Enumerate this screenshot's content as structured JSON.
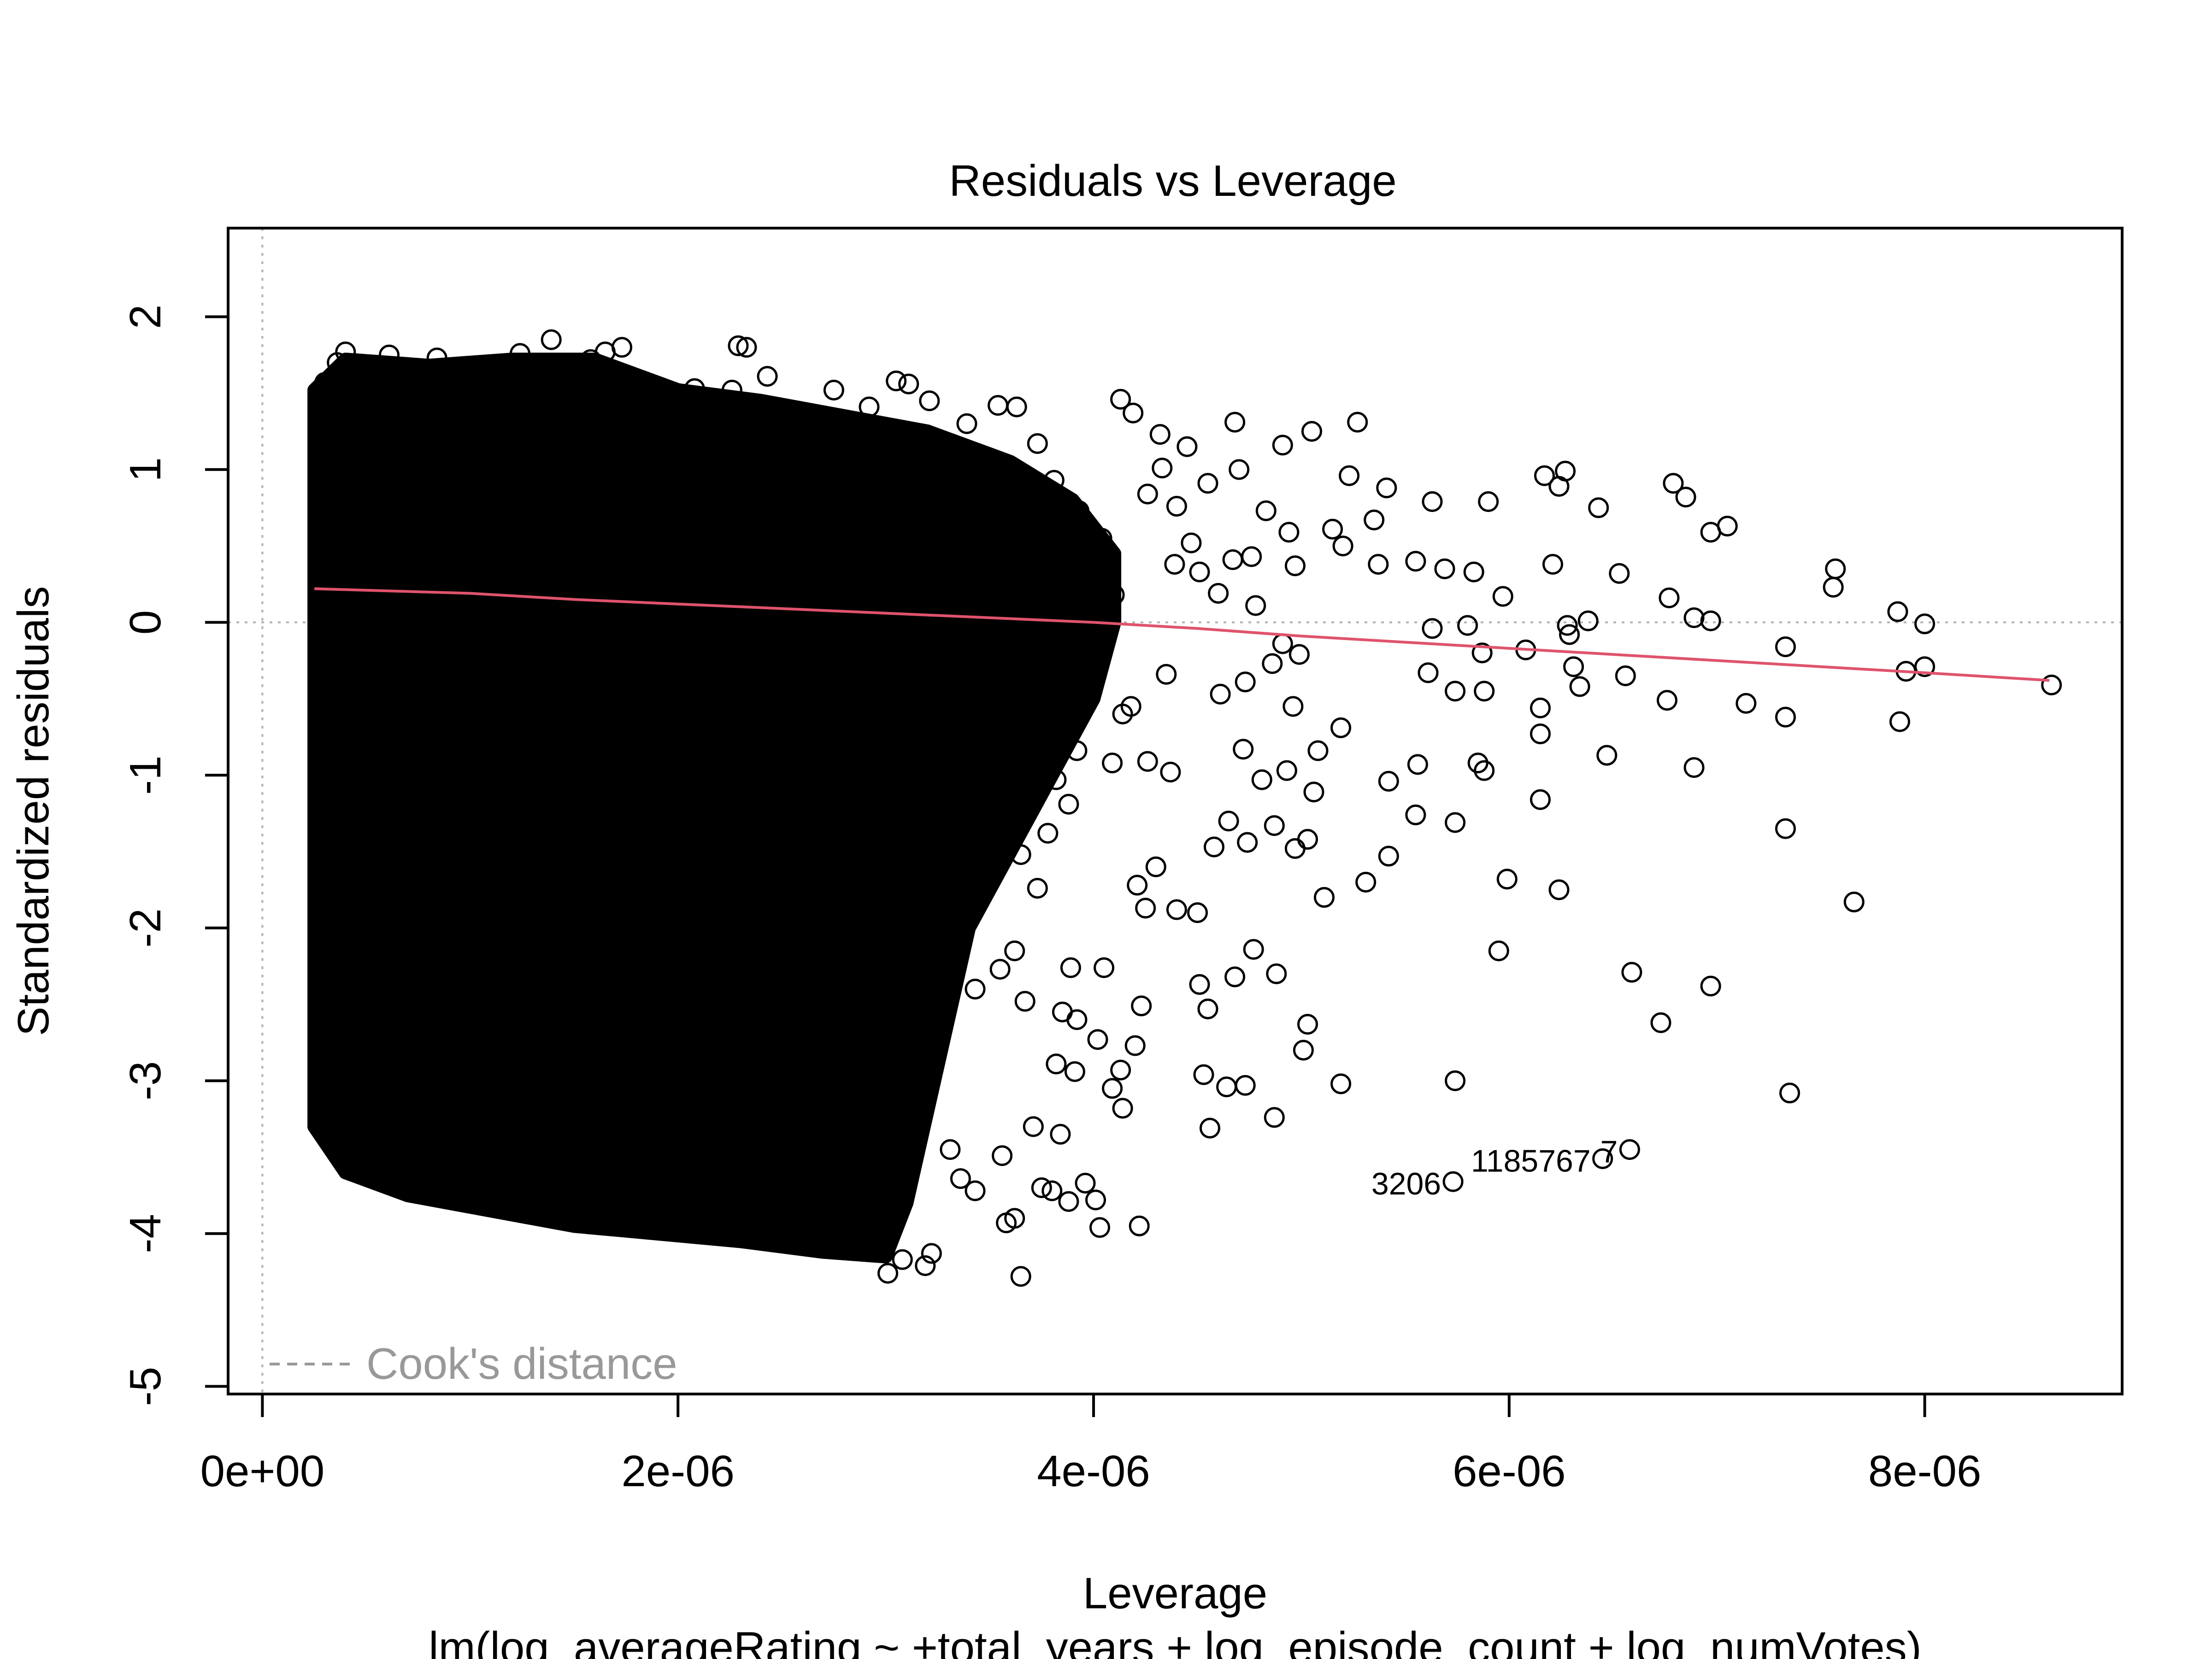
{
  "chart_data": {
    "type": "scatter",
    "title": "Residuals vs Leverage",
    "xlabel": "Leverage",
    "subtitle": "lm(log_averageRating ~ +total_years + log_episode_count + log_numVotes)",
    "ylabel": "Standardized residuals",
    "xlim": [
      -1.65e-07,
      8.95e-06
    ],
    "ylim": [
      -5.05,
      2.58
    ],
    "x_ticks": [
      0,
      2e-06,
      4e-06,
      6e-06,
      8e-06
    ],
    "x_tick_labels": [
      "0e+00",
      "2e-06",
      "4e-06",
      "6e-06",
      "8e-06"
    ],
    "y_ticks": [
      -5,
      -4,
      -3,
      -2,
      -1,
      0,
      1,
      2
    ],
    "y_tick_labels": [
      "-5",
      "-4",
      "-3",
      "-2",
      "-1",
      "0",
      "1",
      "2"
    ],
    "reference_lines": {
      "vertical_at_x": 0,
      "horizontal_at_y": 0,
      "style": "dotted",
      "color": "#b0b0b0"
    },
    "dense_region": {
      "description": "overplotted points",
      "x_range": [
        2.5e-07,
        3.2e-06
      ],
      "y_range": [
        -4.25,
        1.85
      ]
    },
    "points": [
      [
        2.29e-06,
        1.81
      ],
      [
        2.33e-06,
        1.8
      ],
      [
        1.39e-06,
        1.85
      ],
      [
        1.73e-06,
        1.8
      ],
      [
        4.13e-06,
        1.46
      ],
      [
        4.68e-06,
        1.31
      ],
      [
        5.05e-06,
        1.25
      ],
      [
        5.27e-06,
        1.31
      ],
      [
        4.91e-06,
        1.16
      ],
      [
        4.45e-06,
        1.15
      ],
      [
        4.19e-06,
        1.37
      ],
      [
        4.32e-06,
        1.23
      ],
      [
        5.23e-06,
        0.96
      ],
      [
        5.41e-06,
        0.88
      ],
      [
        5.63e-06,
        0.79
      ],
      [
        5.9e-06,
        0.79
      ],
      [
        6.27e-06,
        0.99
      ],
      [
        6.17e-06,
        0.96
      ],
      [
        6.24e-06,
        0.89
      ],
      [
        6.43e-06,
        0.75
      ],
      [
        6.79e-06,
        0.91
      ],
      [
        6.85e-06,
        0.82
      ],
      [
        7.05e-06,
        0.63
      ],
      [
        6.97e-06,
        0.59
      ],
      [
        5.15e-06,
        0.61
      ],
      [
        5.35e-06,
        0.67
      ],
      [
        5.2e-06,
        0.5
      ],
      [
        5.37e-06,
        0.38
      ],
      [
        5.55e-06,
        0.4
      ],
      [
        5.69e-06,
        0.35
      ],
      [
        5.83e-06,
        0.33
      ],
      [
        5.97e-06,
        0.17
      ],
      [
        6.21e-06,
        0.38
      ],
      [
        6.53e-06,
        0.32
      ],
      [
        6.77e-06,
        0.16
      ],
      [
        6.89e-06,
        0.03
      ],
      [
        6.97e-06,
        0.01
      ],
      [
        7.57e-06,
        0.35
      ],
      [
        7.56e-06,
        0.23
      ],
      [
        7.87e-06,
        0.07
      ],
      [
        8e-06,
        -0.01
      ],
      [
        5.63e-06,
        -0.04
      ],
      [
        5.8e-06,
        -0.02
      ],
      [
        5.87e-06,
        -0.2
      ],
      [
        6.28e-06,
        -0.02
      ],
      [
        6.29e-06,
        -0.08
      ],
      [
        6.38e-06,
        0.01
      ],
      [
        6.31e-06,
        -0.29
      ],
      [
        6.34e-06,
        -0.42
      ],
      [
        6.56e-06,
        -0.35
      ],
      [
        6.08e-06,
        -0.18
      ],
      [
        5.88e-06,
        -0.45
      ],
      [
        6.15e-06,
        -0.56
      ],
      [
        6.15e-06,
        -0.73
      ],
      [
        6.47e-06,
        -0.87
      ],
      [
        5.61e-06,
        -0.33
      ],
      [
        5.74e-06,
        -0.45
      ],
      [
        6.76e-06,
        -0.51
      ],
      [
        7.14e-06,
        -0.53
      ],
      [
        7.33e-06,
        -0.62
      ],
      [
        7.33e-06,
        -0.16
      ],
      [
        7.91e-06,
        -0.32
      ],
      [
        7.88e-06,
        -0.65
      ],
      [
        8e-06,
        -0.29
      ],
      [
        8.61e-06,
        -0.41
      ],
      [
        5.42e-06,
        -1.04
      ],
      [
        5.56e-06,
        -0.93
      ],
      [
        5.85e-06,
        -0.92
      ],
      [
        5.88e-06,
        -0.97
      ],
      [
        5.74e-06,
        -1.31
      ],
      [
        5.55e-06,
        -1.26
      ],
      [
        5.42e-06,
        -1.53
      ],
      [
        5.31e-06,
        -1.7
      ],
      [
        6.15e-06,
        -1.16
      ],
      [
        6.89e-06,
        -0.95
      ],
      [
        7.33e-06,
        -1.35
      ],
      [
        6.59e-06,
        -2.29
      ],
      [
        6.73e-06,
        -2.62
      ],
      [
        6.97e-06,
        -2.38
      ],
      [
        7.66e-06,
        -1.83
      ],
      [
        5.99e-06,
        -1.68
      ],
      [
        6.24e-06,
        -1.75
      ],
      [
        5.95e-06,
        -2.15
      ],
      [
        7.35e-06,
        -3.08
      ],
      [
        5.74e-06,
        -3.0
      ],
      [
        5.19e-06,
        -3.02
      ],
      [
        5.03e-06,
        -2.63
      ],
      [
        5.01e-06,
        -2.8
      ],
      [
        4.88e-06,
        -2.3
      ],
      [
        4.87e-06,
        -3.24
      ],
      [
        4.73e-06,
        -3.03
      ],
      [
        4.51e-06,
        -2.37
      ],
      [
        4.53e-06,
        -2.96
      ],
      [
        4.56e-06,
        -3.31
      ],
      [
        4.64e-06,
        -3.04
      ],
      [
        4.55e-06,
        -2.53
      ],
      [
        4.77e-06,
        -2.14
      ],
      [
        4.68e-06,
        -2.32
      ],
      [
        4.5e-06,
        -1.9
      ],
      [
        4.3e-06,
        -1.6
      ],
      [
        5.03e-06,
        -1.42
      ],
      [
        4.97e-06,
        -1.48
      ],
      [
        5.11e-06,
        -1.8
      ],
      [
        4.23e-06,
        -2.51
      ],
      [
        4.03e-06,
        -3.96
      ],
      [
        4.01e-06,
        -3.78
      ],
      [
        3.96e-06,
        -3.67
      ],
      [
        3.65e-06,
        -4.28
      ],
      [
        3.58e-06,
        -3.93
      ],
      [
        3.62e-06,
        -3.9
      ],
      [
        3.56e-06,
        -3.49
      ],
      [
        3.84e-06,
        -3.35
      ],
      [
        4.22e-06,
        -3.95
      ],
      [
        4.05e-06,
        -2.26
      ],
      [
        4.74e-06,
        -1.44
      ],
      [
        4.65e-06,
        -1.3
      ],
      [
        4.87e-06,
        -1.33
      ],
      [
        4.72e-06,
        -0.83
      ],
      [
        4.81e-06,
        -1.03
      ],
      [
        4.93e-06,
        -0.97
      ],
      [
        4.96e-06,
        -0.55
      ],
      [
        5.08e-06,
        -0.84
      ],
      [
        5.06e-06,
        -1.11
      ],
      [
        5.19e-06,
        -0.69
      ],
      [
        4.67e-06,
        0.41
      ],
      [
        4.76e-06,
        0.43
      ],
      [
        4.94e-06,
        0.59
      ],
      [
        4.97e-06,
        0.37
      ],
      [
        4.83e-06,
        0.73
      ],
      [
        4.7e-06,
        1.0
      ],
      [
        4.55e-06,
        0.91
      ],
      [
        4.33e-06,
        1.01
      ],
      [
        4.26e-06,
        0.84
      ],
      [
        4.4e-06,
        0.76
      ],
      [
        4.47e-06,
        0.52
      ],
      [
        4.39e-06,
        0.38
      ],
      [
        4.51e-06,
        0.33
      ],
      [
        4.6e-06,
        0.19
      ],
      [
        4.78e-06,
        0.11
      ],
      [
        4.91e-06,
        -0.14
      ],
      [
        4.99e-06,
        -0.21
      ],
      [
        4.86e-06,
        -0.27
      ],
      [
        4.61e-06,
        -0.47
      ],
      [
        4.73e-06,
        -0.39
      ],
      [
        4.35e-06,
        -0.34
      ],
      [
        4.18e-06,
        -0.55
      ],
      [
        4.26e-06,
        -0.91
      ],
      [
        4.37e-06,
        -0.98
      ],
      [
        4.21e-06,
        -1.72
      ],
      [
        4.25e-06,
        -1.87
      ],
      [
        4.4e-06,
        -1.88
      ],
      [
        4.58e-06,
        -1.47
      ],
      [
        3.92e-06,
        -2.6
      ],
      [
        3.91e-06,
        -2.94
      ],
      [
        4.02e-06,
        -2.73
      ],
      [
        4.09e-06,
        -3.05
      ],
      [
        4.14e-06,
        -3.18
      ],
      [
        3.71e-06,
        -3.3
      ],
      [
        3.82e-06,
        -2.89
      ],
      [
        3.67e-06,
        -2.48
      ],
      [
        3.89e-06,
        -2.26
      ],
      [
        3.85e-06,
        -2.55
      ],
      [
        4.2e-06,
        -2.77
      ],
      [
        4.13e-06,
        -2.93
      ],
      [
        3.75e-06,
        -3.7
      ],
      [
        3.8e-06,
        -3.72
      ],
      [
        3.88e-06,
        -3.79
      ],
      [
        3.43e-06,
        -3.72
      ],
      [
        3.36e-06,
        -3.64
      ],
      [
        3.31e-06,
        -3.45
      ],
      [
        3.22e-06,
        -4.13
      ],
      [
        3.19e-06,
        -4.21
      ],
      [
        3.01e-06,
        -4.26
      ],
      [
        3.08e-06,
        -4.17
      ],
      [
        3.31e-06,
        -2.31
      ],
      [
        3.17e-06,
        -2.06
      ],
      [
        3.24e-06,
        -2.43
      ],
      [
        3.43e-06,
        -2.4
      ],
      [
        3.55e-06,
        -2.27
      ],
      [
        3.62e-06,
        -2.15
      ],
      [
        3.73e-06,
        -1.74
      ],
      [
        3.49e-06,
        -1.63
      ],
      [
        3.65e-06,
        -1.52
      ],
      [
        3.78e-06,
        -1.38
      ],
      [
        3.88e-06,
        -1.19
      ],
      [
        3.82e-06,
        -1.03
      ],
      [
        3.92e-06,
        -0.84
      ],
      [
        4.09e-06,
        -0.92
      ],
      [
        4.14e-06,
        -0.6
      ],
      [
        4.01e-06,
        -0.35
      ],
      [
        3.97e-06,
        -0.1
      ],
      [
        4.1e-06,
        0.18
      ],
      [
        4.04e-06,
        0.55
      ],
      [
        3.93e-06,
        0.73
      ],
      [
        3.81e-06,
        0.93
      ],
      [
        3.73e-06,
        1.17
      ],
      [
        3.63e-06,
        1.41
      ],
      [
        3.54e-06,
        1.42
      ],
      [
        3.39e-06,
        1.3
      ],
      [
        3.21e-06,
        1.45
      ],
      [
        3.11e-06,
        1.56
      ],
      [
        3.05e-06,
        1.58
      ],
      [
        2.75e-06,
        1.52
      ],
      [
        2.92e-06,
        1.41
      ],
      [
        2.58e-06,
        1.33
      ],
      [
        2.43e-06,
        1.61
      ],
      [
        2.26e-06,
        1.52
      ],
      [
        2.08e-06,
        1.53
      ],
      [
        1.96e-06,
        1.5
      ],
      [
        1.86e-06,
        1.48
      ],
      [
        1.65e-06,
        1.77
      ],
      [
        1.58e-06,
        1.72
      ],
      [
        1.24e-06,
        1.76
      ],
      [
        1.1e-06,
        1.68
      ],
      [
        8.4e-07,
        1.73
      ],
      [
        7.8e-07,
        1.64
      ],
      [
        6.1e-07,
        1.75
      ],
      [
        4e-07,
        1.77
      ],
      [
        3.6e-07,
        1.7
      ],
      [
        3e-07,
        1.57
      ]
    ],
    "labeled_points": [
      {
        "label": "3206",
        "x": 5.73e-06,
        "y": -3.66
      },
      {
        "label": "1185767",
        "x": 6.45e-06,
        "y": -3.51
      },
      {
        "label": "7",
        "x": 6.58e-06,
        "y": -3.45
      }
    ],
    "smoother": {
      "color": "#df536b",
      "points": [
        [
          2.5e-07,
          0.22
        ],
        [
          1e-06,
          0.19
        ],
        [
          1.5e-06,
          0.15
        ],
        [
          2e-06,
          0.12
        ],
        [
          2.5e-06,
          0.09
        ],
        [
          3e-06,
          0.06
        ],
        [
          3.5e-06,
          0.03
        ],
        [
          4e-06,
          0.0
        ],
        [
          4.5e-06,
          -0.04
        ],
        [
          5e-06,
          -0.09
        ],
        [
          5.5e-06,
          -0.13
        ],
        [
          6e-06,
          -0.17
        ],
        [
          6.5e-06,
          -0.21
        ],
        [
          7e-06,
          -0.25
        ],
        [
          7.5e-06,
          -0.29
        ],
        [
          8e-06,
          -0.33
        ],
        [
          8.6e-06,
          -0.38
        ]
      ]
    },
    "legend": {
      "position": "bottom-left",
      "entries": [
        {
          "label": "Cook's distance",
          "style": "dashed",
          "color": "#999999"
        }
      ]
    },
    "grid": false
  }
}
